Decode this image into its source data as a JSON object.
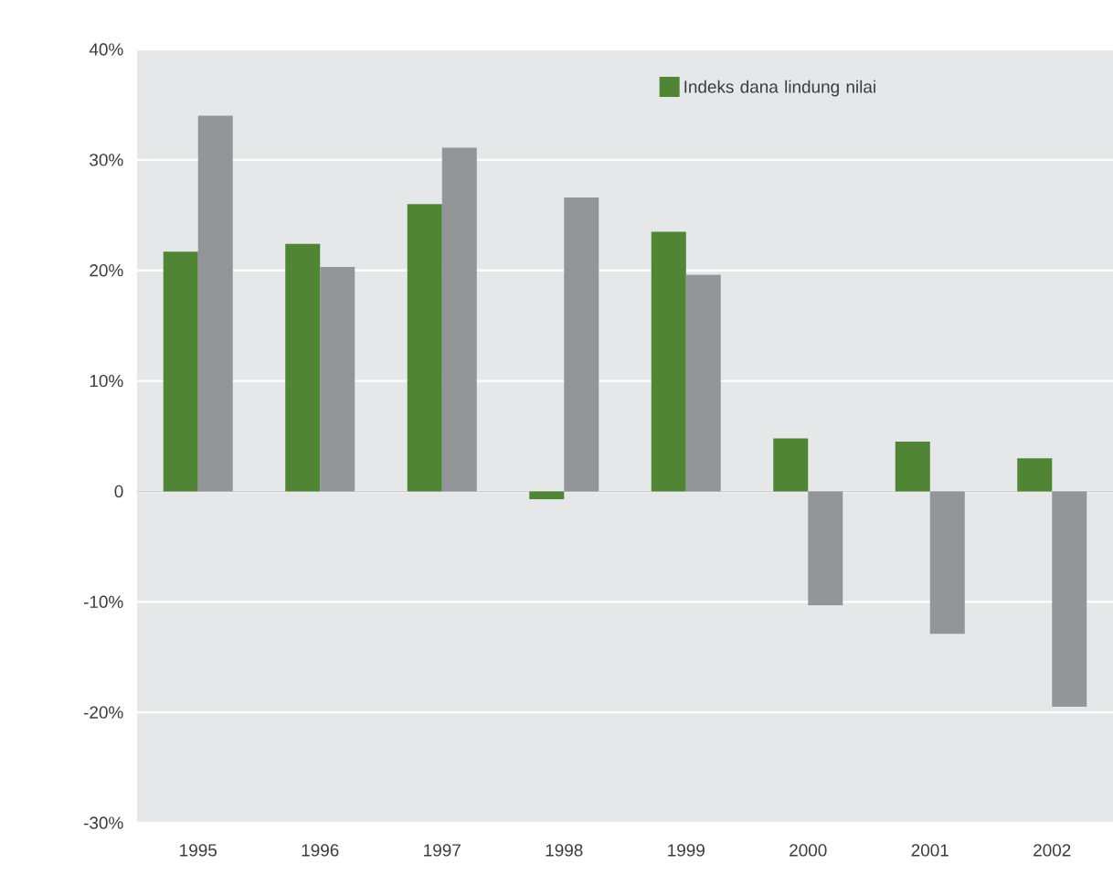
{
  "chart_data": {
    "type": "bar",
    "categories": [
      "1995",
      "1996",
      "1997",
      "1998",
      "1999",
      "2000",
      "2001",
      "2002"
    ],
    "series": [
      {
        "name": "Indeks dana lindung nilai",
        "color": "#4f8535",
        "values": [
          21.7,
          22.4,
          26.0,
          -0.7,
          23.5,
          4.8,
          4.5,
          3.0
        ]
      },
      {
        "color": "#939598",
        "values": [
          34.0,
          20.3,
          31.1,
          26.6,
          19.6,
          -10.3,
          -12.9,
          -19.5
        ]
      }
    ],
    "ylim": [
      -30,
      40
    ],
    "yticks": [
      {
        "value": -30,
        "label": "-30%"
      },
      {
        "value": -20,
        "label": "-20%"
      },
      {
        "value": -10,
        "label": "-10%"
      },
      0,
      {
        "value": 10,
        "label": "10%"
      },
      {
        "value": 20,
        "label": "20%"
      },
      {
        "value": 30,
        "label": "30%"
      },
      {
        "value": 40,
        "label": "40%"
      }
    ],
    "grid": "y",
    "legend": "top right"
  }
}
